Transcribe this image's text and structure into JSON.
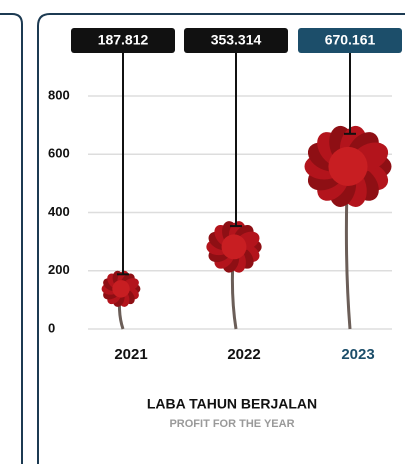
{
  "chart_data": {
    "type": "lollipop",
    "title": "LABA TAHUN BERJALAN",
    "subtitle": "PROFIT FOR THE YEAR",
    "categories": [
      "2021",
      "2022",
      "2023"
    ],
    "values": [
      187.812,
      353.314,
      670.161
    ],
    "colors": [
      "#111111",
      "#111111",
      "#1c4e6a"
    ],
    "ylim": [
      0,
      800
    ],
    "yticks": [
      0,
      200,
      400,
      600,
      800
    ],
    "grid": true
  }
}
